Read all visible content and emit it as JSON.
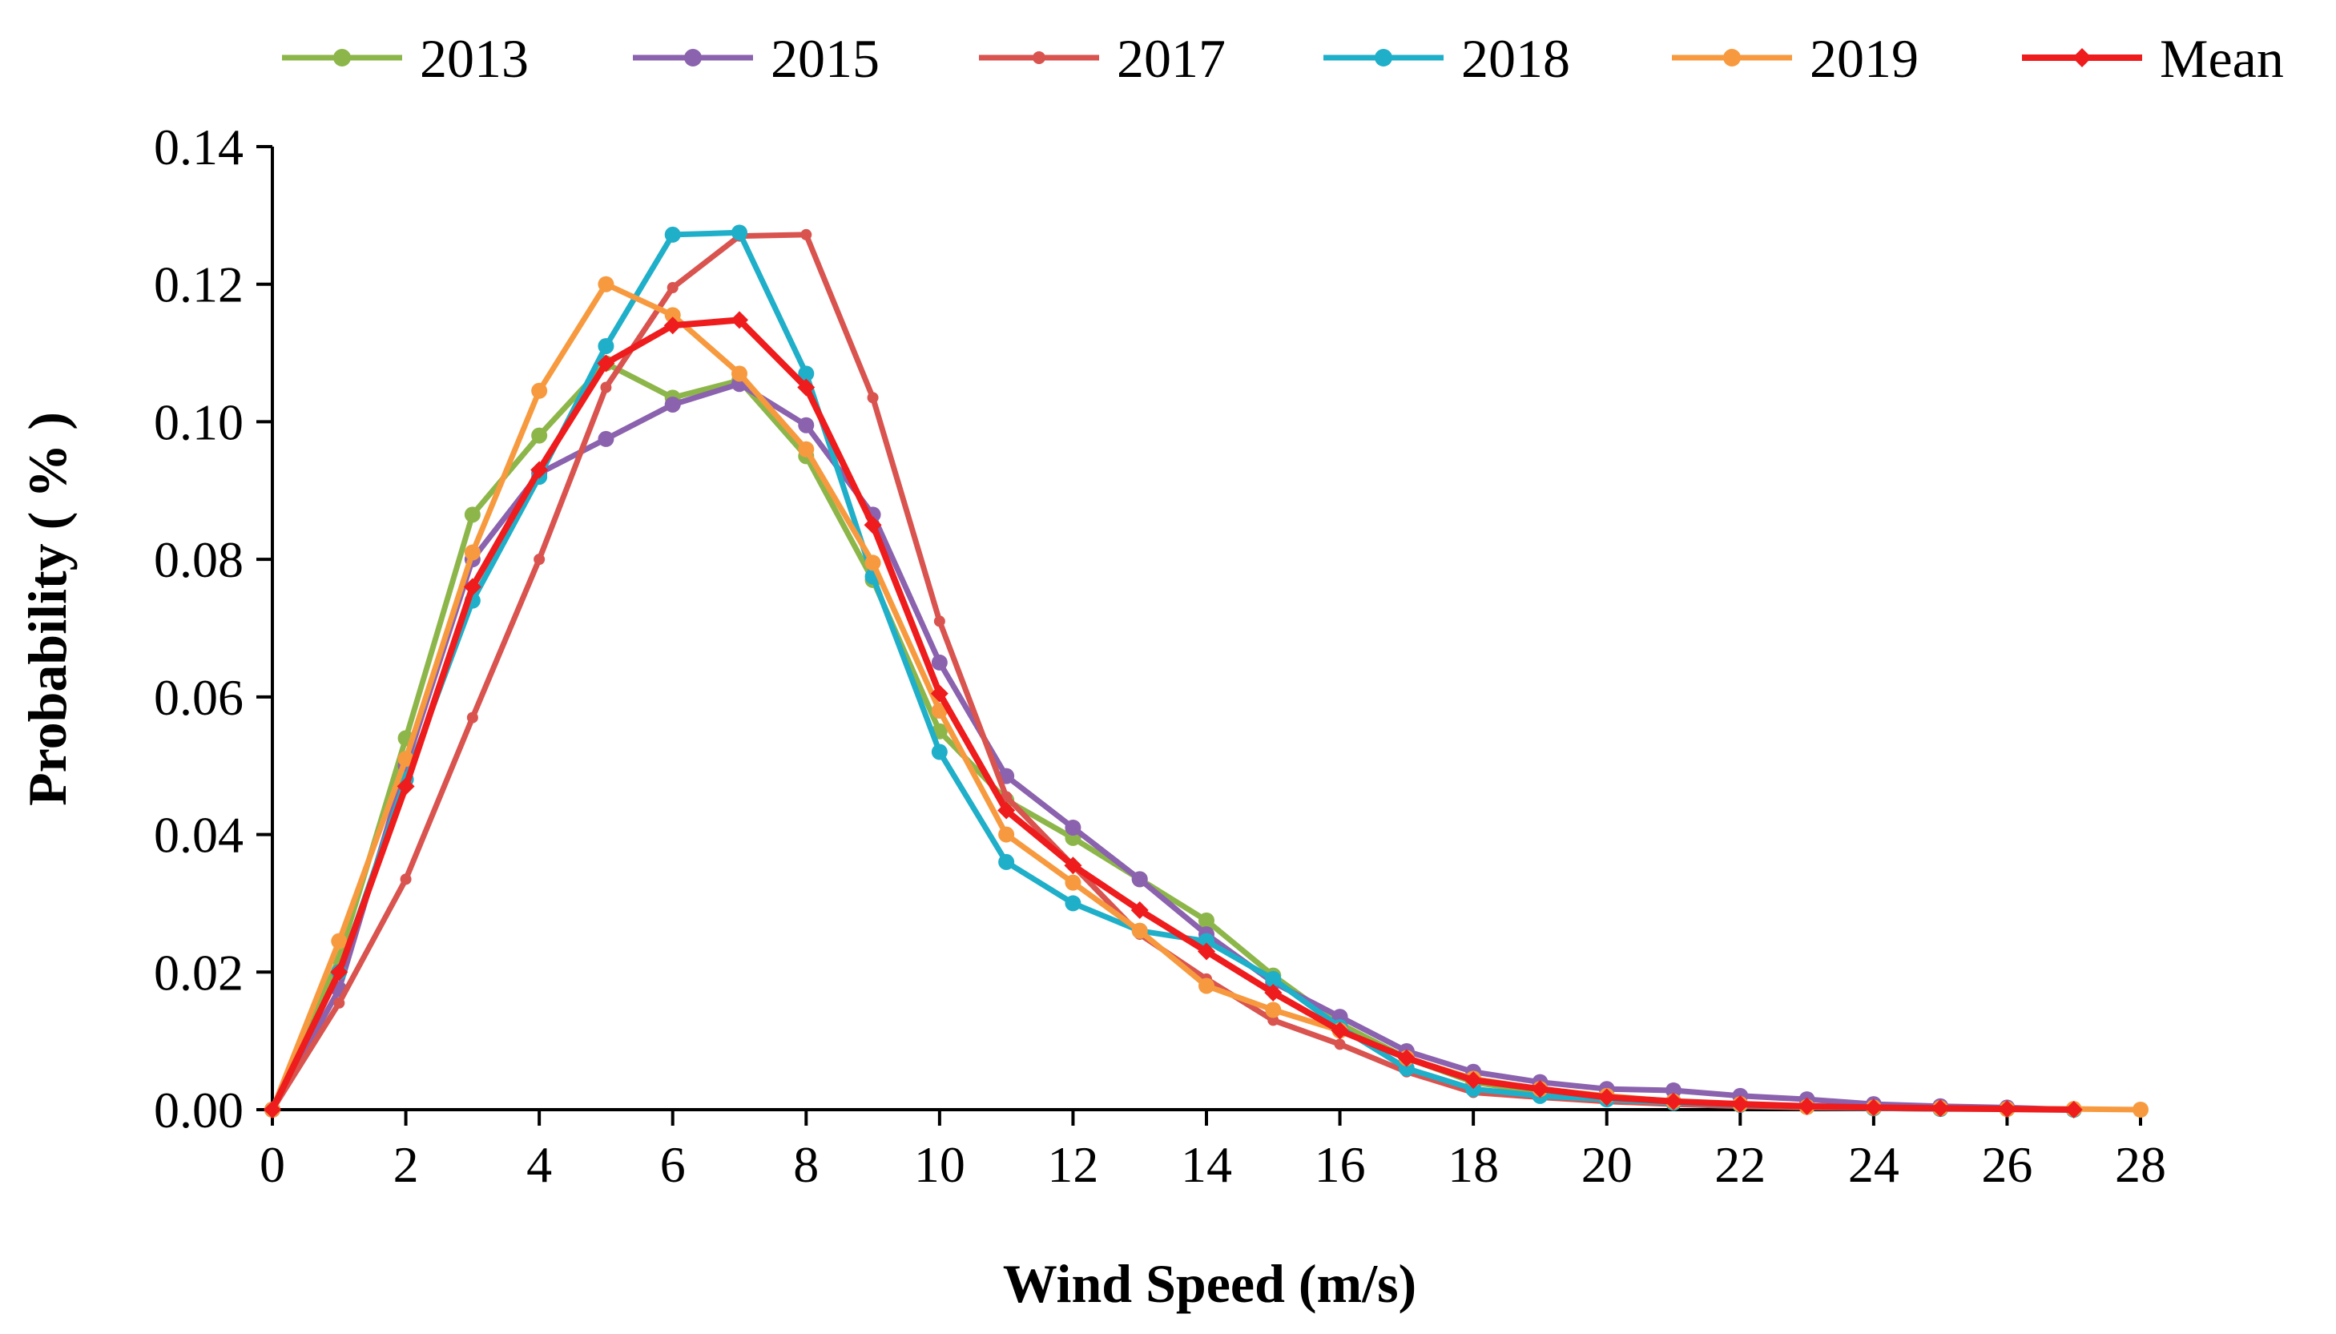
{
  "chart_data": {
    "type": "line",
    "title": "",
    "xlabel": "Wind Speed (m/s)",
    "ylabel": "Probability ( % )",
    "xlim": [
      0,
      28
    ],
    "ylim": [
      0,
      0.14
    ],
    "x_ticks": [
      "0",
      "2",
      "4",
      "6",
      "8",
      "10",
      "12",
      "14",
      "16",
      "18",
      "20",
      "22",
      "24",
      "26",
      "28"
    ],
    "y_ticks": [
      "0.00",
      "0.02",
      "0.04",
      "0.06",
      "0.08",
      "0.10",
      "0.12",
      "0.14"
    ],
    "grid": false,
    "legend_position": "top",
    "series": [
      {
        "name": "2013",
        "color": "#8DB64A",
        "x": [
          0,
          1,
          2,
          3,
          4,
          5,
          6,
          7,
          8,
          9,
          10,
          11,
          12,
          13,
          14,
          15,
          16,
          17,
          18,
          19,
          20,
          21,
          22,
          23,
          24,
          25,
          26,
          27
        ],
        "values": [
          0,
          0.022,
          0.054,
          0.0865,
          0.098,
          0.1085,
          0.1035,
          0.106,
          0.095,
          0.077,
          0.055,
          0.045,
          0.0395,
          0.0335,
          0.0275,
          0.0195,
          0.0125,
          0.0075,
          0.004,
          0.0025,
          0.0015,
          0.001,
          0.0008,
          0.0005,
          0.0003,
          0.0002,
          0.0001,
          0
        ]
      },
      {
        "name": "2015",
        "color": "#8B62AE",
        "x": [
          0,
          1,
          2,
          3,
          4,
          5,
          6,
          7,
          8,
          9,
          10,
          11,
          12,
          13,
          14,
          15,
          16,
          17,
          18,
          19,
          20,
          21,
          22,
          23,
          24,
          25,
          26,
          27
        ],
        "values": [
          0,
          0.0175,
          0.05,
          0.08,
          0.0925,
          0.0975,
          0.1025,
          0.1055,
          0.0995,
          0.0865,
          0.065,
          0.0485,
          0.041,
          0.0335,
          0.0255,
          0.0185,
          0.0135,
          0.0085,
          0.0055,
          0.004,
          0.003,
          0.0028,
          0.002,
          0.0015,
          0.0008,
          0.0005,
          0.0003,
          0
        ]
      },
      {
        "name": "2017",
        "color": "#D9534F",
        "x": [
          0,
          1,
          2,
          3,
          4,
          5,
          6,
          7,
          8,
          9,
          10,
          11,
          12,
          13,
          14,
          15,
          16,
          17,
          18,
          19,
          20,
          21,
          22,
          23,
          24,
          25,
          26,
          27
        ],
        "values": [
          0,
          0.0155,
          0.0335,
          0.057,
          0.08,
          0.105,
          0.1195,
          0.127,
          0.1272,
          0.1035,
          0.071,
          0.0455,
          0.0355,
          0.0255,
          0.019,
          0.013,
          0.0095,
          0.0055,
          0.0025,
          0.0018,
          0.0012,
          0.0008,
          0.0005,
          0.0003,
          0.0002,
          0.0001,
          0.0001,
          0
        ]
      },
      {
        "name": "2018",
        "color": "#1FAFC9",
        "x": [
          0,
          1,
          2,
          3,
          4,
          5,
          6,
          7,
          8,
          9,
          10,
          11,
          12,
          13,
          14,
          15,
          16,
          17,
          18,
          19,
          20,
          21,
          22,
          23,
          24,
          25,
          26,
          27
        ],
        "values": [
          0,
          0.02,
          0.048,
          0.074,
          0.092,
          0.111,
          0.1272,
          0.1275,
          0.107,
          0.0775,
          0.052,
          0.036,
          0.03,
          0.026,
          0.0245,
          0.019,
          0.012,
          0.006,
          0.003,
          0.002,
          0.0015,
          0.001,
          0.0007,
          0.0004,
          0.0002,
          0.0001,
          0.0001,
          0
        ]
      },
      {
        "name": "2019",
        "color": "#F79A3F",
        "x": [
          0,
          1,
          2,
          3,
          4,
          5,
          6,
          7,
          8,
          9,
          10,
          11,
          12,
          13,
          14,
          15,
          16,
          17,
          18,
          19,
          20,
          21,
          22,
          23,
          24,
          25,
          26,
          27,
          28
        ],
        "values": [
          0,
          0.0245,
          0.051,
          0.081,
          0.1045,
          0.12,
          0.1155,
          0.107,
          0.096,
          0.0795,
          0.058,
          0.04,
          0.033,
          0.026,
          0.018,
          0.0145,
          0.0115,
          0.0075,
          0.0045,
          0.003,
          0.002,
          0.0012,
          0.0008,
          0.0004,
          0.0003,
          0.0002,
          0.0001,
          0.0001,
          0
        ]
      },
      {
        "name": "Mean",
        "color": "#EE1C1C",
        "x": [
          0,
          1,
          2,
          3,
          4,
          5,
          6,
          7,
          8,
          9,
          10,
          11,
          12,
          13,
          14,
          15,
          16,
          17,
          18,
          19,
          20,
          21,
          22,
          23,
          24,
          25,
          26,
          27
        ],
        "values": [
          0,
          0.02,
          0.047,
          0.076,
          0.093,
          0.1085,
          0.114,
          0.1148,
          0.105,
          0.085,
          0.0605,
          0.0435,
          0.0355,
          0.029,
          0.023,
          0.017,
          0.0115,
          0.0075,
          0.0043,
          0.003,
          0.0018,
          0.0012,
          0.0008,
          0.0005,
          0.0003,
          0.0002,
          0.0001,
          0
        ]
      }
    ]
  }
}
